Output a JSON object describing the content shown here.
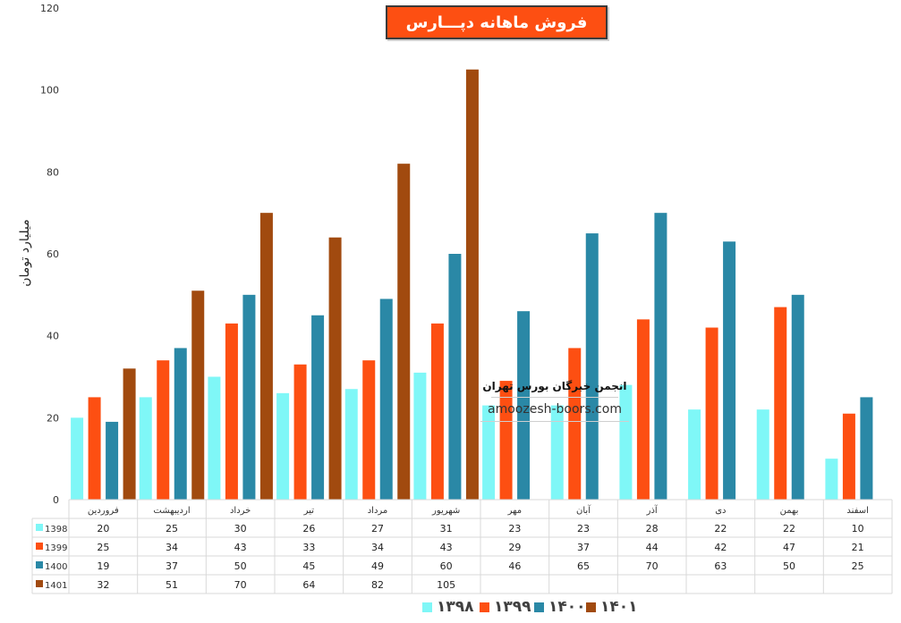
{
  "title": "فروش ماهانه دپـــارس",
  "watermark": {
    "name": "انجمن خبرگان بورس تهران",
    "url": "amoozesh-boors.com"
  },
  "chart_data": {
    "type": "bar",
    "ylabel": "میلیارد تومان",
    "ylim": [
      0,
      120
    ],
    "yticks": [
      "0",
      "20",
      "40",
      "60",
      "80",
      "100",
      "120"
    ],
    "categories": [
      "فروردین",
      "اردیبهشت",
      "خرداد",
      "تیر",
      "مرداد",
      "شهریور",
      "مهر",
      "آبان",
      "آذر",
      "دی",
      "بهمن",
      "اسفند"
    ],
    "series": [
      {
        "name": "1398",
        "legend": "۱۳۹۸",
        "color": "#7ff7f7",
        "values": [
          20,
          25,
          30,
          26,
          27,
          31,
          23,
          23,
          28,
          22,
          22,
          10
        ]
      },
      {
        "name": "1399",
        "legend": "۱۳۹۹",
        "color": "#fd4f12",
        "values": [
          25,
          34,
          43,
          33,
          34,
          43,
          29,
          37,
          44,
          42,
          47,
          21
        ]
      },
      {
        "name": "1400",
        "legend": "۱۴۰۰",
        "color": "#2a88a6",
        "values": [
          19,
          37,
          50,
          45,
          49,
          60,
          46,
          65,
          70,
          63,
          50,
          25
        ]
      },
      {
        "name": "1401",
        "legend": "۱۴۰۱",
        "color": "#a14a0f",
        "values": [
          32,
          51,
          70,
          64,
          82,
          105,
          null,
          null,
          null,
          null,
          null,
          null
        ]
      }
    ],
    "grid": false,
    "legend_position": "bottom",
    "data_table": true
  }
}
